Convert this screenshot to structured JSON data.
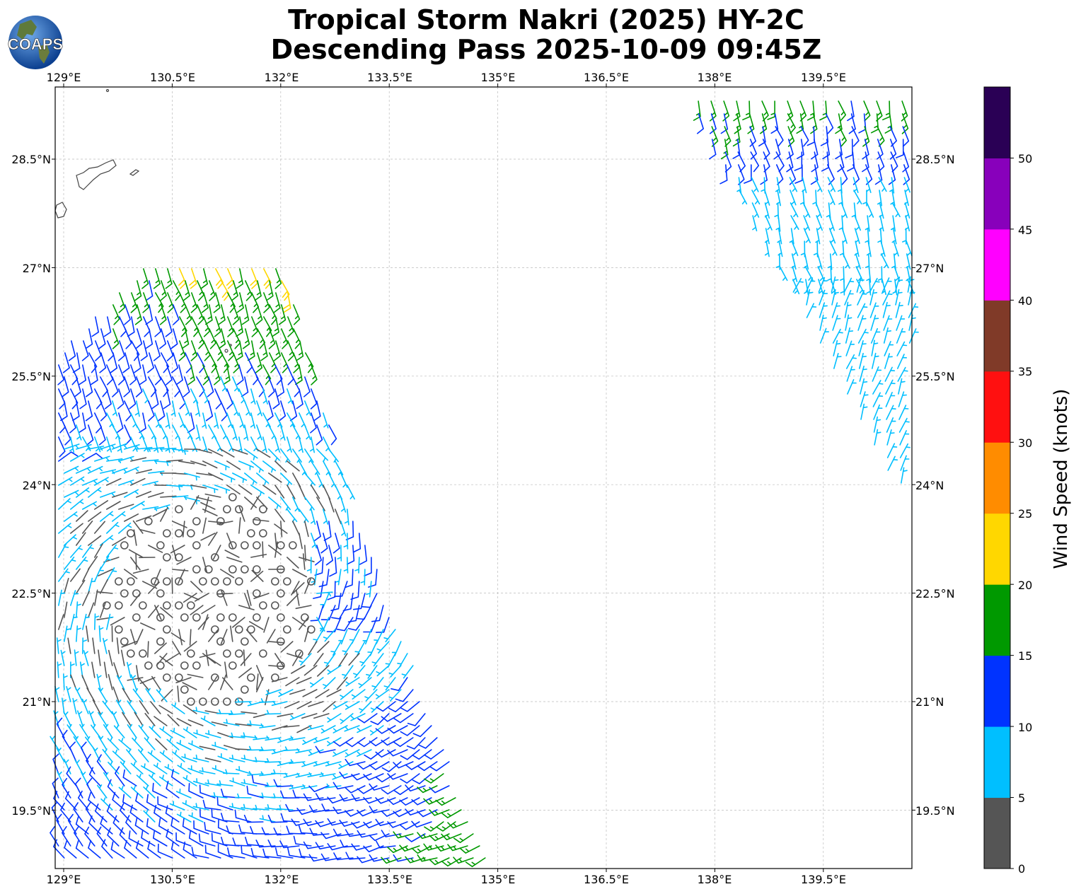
{
  "title_line1": "Tropical Storm Nakri (2025) HY-2C",
  "title_line2": "Descending Pass 2025-10-09 09:45Z",
  "logo_text": "COAPS",
  "axes": {
    "lon_labels": [
      "129°E",
      "130.5°E",
      "132°E",
      "133.5°E",
      "135°E",
      "136.5°E",
      "138°E",
      "139.5°E"
    ],
    "lat_labels": [
      "28.5°N",
      "27°N",
      "25.5°N",
      "24°N",
      "22.5°N",
      "21°N",
      "19.5°N"
    ]
  },
  "colorbar": {
    "label": "Wind Speed (knots)",
    "ticks": [
      "0",
      "5",
      "10",
      "15",
      "20",
      "25",
      "30",
      "35",
      "40",
      "45",
      "50"
    ],
    "colors": [
      "#555555",
      "#00bfff",
      "#0033ff",
      "#009900",
      "#ffd700",
      "#ff8c00",
      "#ff1010",
      "#803a28",
      "#ff00ff",
      "#8800bb",
      "#2a0055"
    ]
  },
  "icons": [
    "logo-globe-icon",
    "coastline-icon"
  ]
}
